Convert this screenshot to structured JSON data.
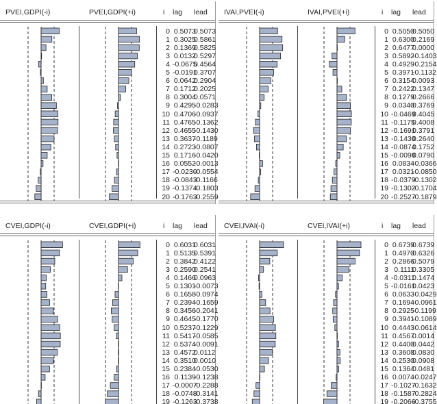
{
  "columns": {
    "i": "i",
    "lag": "lag",
    "lead": "lead"
  },
  "colors": {
    "bar": "#a7b2cb",
    "bar_border": "#222222"
  },
  "panels": [
    {
      "lag_title": "PVEI,GDPI(-i)",
      "lead_title": "PVEI,GDPI(+i)",
      "rows": [
        [
          "0",
          "0.5073",
          "0.5073"
        ],
        [
          "1",
          "0.3025",
          "0.5861"
        ],
        [
          "2",
          "0.1369",
          "0.5825"
        ],
        [
          "3",
          "0.0132",
          "0.5297"
        ],
        [
          "4",
          "-0.0675",
          "0.4564"
        ],
        [
          "5",
          "-0.0191",
          "0.3707"
        ],
        [
          "6",
          "0.0642",
          "0.2904"
        ],
        [
          "7",
          "0.1712",
          "0.2025"
        ],
        [
          "8",
          "0.3004",
          "0.0571"
        ],
        [
          "9",
          "0.4295",
          "-0.0283"
        ],
        [
          "10",
          "0.4706",
          "-0.0937"
        ],
        [
          "11",
          "0.4765",
          "-0.1362"
        ],
        [
          "12",
          "0.4655",
          "-0.1430"
        ],
        [
          "13",
          "0.3637",
          "-0.1189"
        ],
        [
          "14",
          "0.2723",
          "-0.0807"
        ],
        [
          "15",
          "0.1716",
          "-0.0420"
        ],
        [
          "16",
          "0.0552",
          "-0.0013"
        ],
        [
          "17",
          "-0.0230",
          "-0.0554"
        ],
        [
          "18",
          "-0.0843",
          "-0.1166"
        ],
        [
          "19",
          "-0.1374",
          "-0.1803"
        ],
        [
          "20",
          "-0.1763",
          "-0.2559"
        ]
      ]
    },
    {
      "lag_title": "IVAI,PVEI(-i)",
      "lead_title": "IVAI,PVEI(+i)",
      "rows": [
        [
          "0",
          "0.5050",
          "0.5050"
        ],
        [
          "1",
          "0.6300",
          "0.2169"
        ],
        [
          "2",
          "0.6477",
          "0.0000"
        ],
        [
          "3",
          "0.5892",
          "-0.1403"
        ],
        [
          "4",
          "0.4929",
          "-0.2154"
        ],
        [
          "5",
          "0.3971",
          "-0.1132"
        ],
        [
          "6",
          "0.3154",
          "0.0093"
        ],
        [
          "7",
          "0.2422",
          "0.1347"
        ],
        [
          "8",
          "0.1279",
          "0.2666"
        ],
        [
          "9",
          "0.0340",
          "0.3769"
        ],
        [
          "10",
          "-0.0469",
          "0.4045"
        ],
        [
          "11",
          "-0.1175",
          "0.4008"
        ],
        [
          "12",
          "-0.1691",
          "0.3791"
        ],
        [
          "13",
          "-0.1430",
          "0.2640"
        ],
        [
          "14",
          "-0.0874",
          "0.1752"
        ],
        [
          "15",
          "-0.0098",
          "0.0790"
        ],
        [
          "16",
          "0.0834",
          "-0.0366"
        ],
        [
          "17",
          "0.0321",
          "-0.0850"
        ],
        [
          "18",
          "-0.0379",
          "-0.1302"
        ],
        [
          "19",
          "-0.1302",
          "-0.1704"
        ],
        [
          "20",
          "-0.2527",
          "-0.1879"
        ]
      ]
    },
    {
      "lag_title": "CVEI,GDPI(-i)",
      "lead_title": "CVEI,GDPI(+i)",
      "rows": [
        [
          "0",
          "0.6031",
          "0.6031"
        ],
        [
          "1",
          "0.5135",
          "0.5391"
        ],
        [
          "2",
          "0.3842",
          "0.4122"
        ],
        [
          "3",
          "0.2590",
          "0.2541"
        ],
        [
          "4",
          "0.1466",
          "0.0963"
        ],
        [
          "5",
          "0.1301",
          "-0.0073"
        ],
        [
          "6",
          "0.1658",
          "-0.0974"
        ],
        [
          "7",
          "0.2394",
          "-0.1659"
        ],
        [
          "8",
          "0.3456",
          "-0.2041"
        ],
        [
          "9",
          "0.4645",
          "-0.1770"
        ],
        [
          "10",
          "0.5237",
          "-0.1229"
        ],
        [
          "11",
          "0.5417",
          "-0.0585"
        ],
        [
          "12",
          "0.5374",
          "-0.0091"
        ],
        [
          "13",
          "0.4572",
          "0.0112"
        ],
        [
          "14",
          "0.3510",
          "0.0010"
        ],
        [
          "15",
          "0.2384",
          "-0.0530"
        ],
        [
          "16",
          "0.1139",
          "-0.1238"
        ],
        [
          "17",
          "-0.0007",
          "-0.2288"
        ],
        [
          "18",
          "-0.0748",
          "-0.3141"
        ],
        [
          "19",
          "-0.1263",
          "-0.3738"
        ],
        [
          "20",
          "-0.1572",
          "-0.4111"
        ]
      ]
    },
    {
      "lag_title": "CVEI,IVAI(-i)",
      "lead_title": "CVEI,IVAI(+i)",
      "rows": [
        [
          "0",
          "0.6739",
          "0.6739"
        ],
        [
          "1",
          "0.4970",
          "0.6326"
        ],
        [
          "2",
          "0.2866",
          "0.5079"
        ],
        [
          "3",
          "0.1111",
          "0.3305"
        ],
        [
          "4",
          "-0.0311",
          "0.1474"
        ],
        [
          "5",
          "-0.0161",
          "0.0423"
        ],
        [
          "6",
          "0.0633",
          "-0.0429"
        ],
        [
          "7",
          "0.1694",
          "-0.0961"
        ],
        [
          "8",
          "0.2925",
          "-0.1199"
        ],
        [
          "9",
          "0.3941",
          "-0.1089"
        ],
        [
          "10",
          "0.4443",
          "-0.0614"
        ],
        [
          "11",
          "0.4567",
          "0.0014"
        ],
        [
          "12",
          "0.4400",
          "0.0442"
        ],
        [
          "13",
          "0.3608",
          "0.0830"
        ],
        [
          "14",
          "0.2530",
          "0.0908"
        ],
        [
          "15",
          "0.1364",
          "0.0481"
        ],
        [
          "16",
          "0.0074",
          "-0.0247"
        ],
        [
          "17",
          "-0.1027",
          "-0.1632"
        ],
        [
          "18",
          "-0.1587",
          "-0.2824"
        ],
        [
          "19",
          "-0.2066",
          "-0.3755"
        ],
        [
          "20",
          "-0.2370",
          "-0.4037"
        ]
      ]
    }
  ]
}
